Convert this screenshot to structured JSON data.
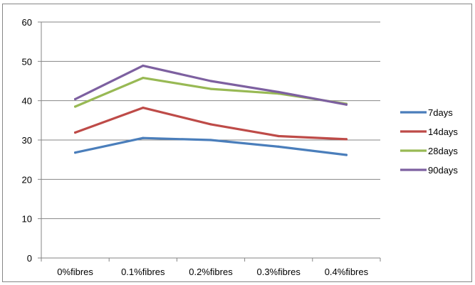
{
  "chart_data": {
    "type": "line",
    "title": "",
    "xlabel": "",
    "ylabel": "",
    "categories": [
      "0%fibres",
      "0.1%fibres",
      "0.2%fibres",
      "0.3%fibres",
      "0.4%fibres"
    ],
    "ylim": [
      0,
      60
    ],
    "yticks": [
      "0",
      "10",
      "20",
      "30",
      "40",
      "50",
      "60"
    ],
    "grid": true,
    "legend_position": "right",
    "series": [
      {
        "name": "7days",
        "color": "#4a7ebb",
        "values": [
          26.8,
          30.5,
          30.0,
          28.3,
          26.2
        ]
      },
      {
        "name": "14days",
        "color": "#be4b48",
        "values": [
          31.9,
          38.2,
          34.0,
          31.0,
          30.2
        ]
      },
      {
        "name": "28days",
        "color": "#98b954",
        "values": [
          38.5,
          45.8,
          43.0,
          41.8,
          39.2
        ]
      },
      {
        "name": "90days",
        "color": "#7d60a0",
        "values": [
          40.4,
          48.9,
          45.0,
          42.2,
          39.0
        ]
      }
    ]
  }
}
